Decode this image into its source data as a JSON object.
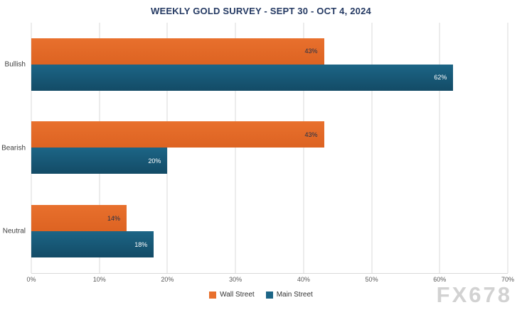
{
  "chart_data": {
    "type": "bar",
    "orientation": "horizontal",
    "title": "WEEKLY GOLD SURVEY - SEPT 30 - OCT 4, 2024",
    "categories": [
      "Bullish",
      "Bearish",
      "Neutral"
    ],
    "series": [
      {
        "name": "Wall Street",
        "color": "#e8702d",
        "color2": "#dd6322",
        "label_color": "#20304a",
        "values": [
          43,
          43,
          14
        ]
      },
      {
        "name": "Main Street",
        "color": "#1c6586",
        "color2": "#134b66",
        "label_color": "#ffffff",
        "values": [
          62,
          20,
          18
        ]
      }
    ],
    "xlim": [
      0,
      70
    ],
    "x_tick_step": 10,
    "tick_suffix": "%",
    "grid": true,
    "legend_position": "bottom"
  },
  "watermark": "FX678",
  "colors": {
    "title": "#253a63",
    "gridline": "#d9d9d9",
    "axis_text": "#595959",
    "category_text": "#404040",
    "watermark": "#d2d2d2"
  }
}
